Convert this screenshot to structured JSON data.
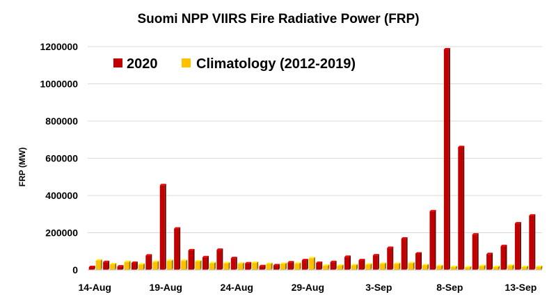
{
  "chart_data": {
    "type": "bar",
    "title": "Suomi NPP VIIRS Fire Radiative Power (FRP)",
    "ylabel": "FRP (MW)",
    "xlabel": "",
    "ylim": [
      0,
      1200000
    ],
    "yticks": [
      "0",
      "200000",
      "400000",
      "600000",
      "800000",
      "1000000",
      "1200000"
    ],
    "ytick_values": [
      0,
      200000,
      400000,
      600000,
      800000,
      1000000,
      1200000
    ],
    "grid": true,
    "legend_position": "top-left",
    "categories": [
      "14-Aug",
      "15-Aug",
      "16-Aug",
      "17-Aug",
      "18-Aug",
      "19-Aug",
      "20-Aug",
      "21-Aug",
      "22-Aug",
      "23-Aug",
      "24-Aug",
      "25-Aug",
      "26-Aug",
      "27-Aug",
      "28-Aug",
      "29-Aug",
      "30-Aug",
      "31-Aug",
      "1-Sep",
      "2-Sep",
      "3-Sep",
      "4-Sep",
      "5-Sep",
      "6-Sep",
      "7-Sep",
      "8-Sep",
      "9-Sep",
      "10-Sep",
      "11-Sep",
      "12-Sep",
      "13-Sep",
      "14-Sep"
    ],
    "xtick_labels": [
      "14-Aug",
      "19-Aug",
      "24-Aug",
      "29-Aug",
      "3-Sep",
      "8-Sep",
      "13-Sep"
    ],
    "xtick_indices": [
      0,
      5,
      10,
      15,
      20,
      25,
      30
    ],
    "series": [
      {
        "name": "2020",
        "color": "#c00000",
        "values": [
          15000,
          42000,
          18000,
          38000,
          77000,
          455000,
          222000,
          105000,
          68000,
          108000,
          63000,
          35000,
          20000,
          25000,
          40000,
          52000,
          38000,
          42000,
          70000,
          52000,
          78000,
          118000,
          168000,
          88000,
          315000,
          1185000,
          660000,
          190000,
          85000,
          128000,
          250000,
          292000
        ]
      },
      {
        "name": "Climatology (2012-2019)",
        "color": "#ffc000",
        "values": [
          50000,
          30000,
          42000,
          28000,
          42000,
          48000,
          48000,
          45000,
          35000,
          35000,
          33000,
          38000,
          32000,
          32000,
          33000,
          62000,
          22000,
          22000,
          25000,
          28000,
          32000,
          32000,
          35000,
          25000,
          20000,
          15000,
          13000,
          20000,
          15000,
          22000,
          15000,
          16000
        ]
      }
    ]
  }
}
